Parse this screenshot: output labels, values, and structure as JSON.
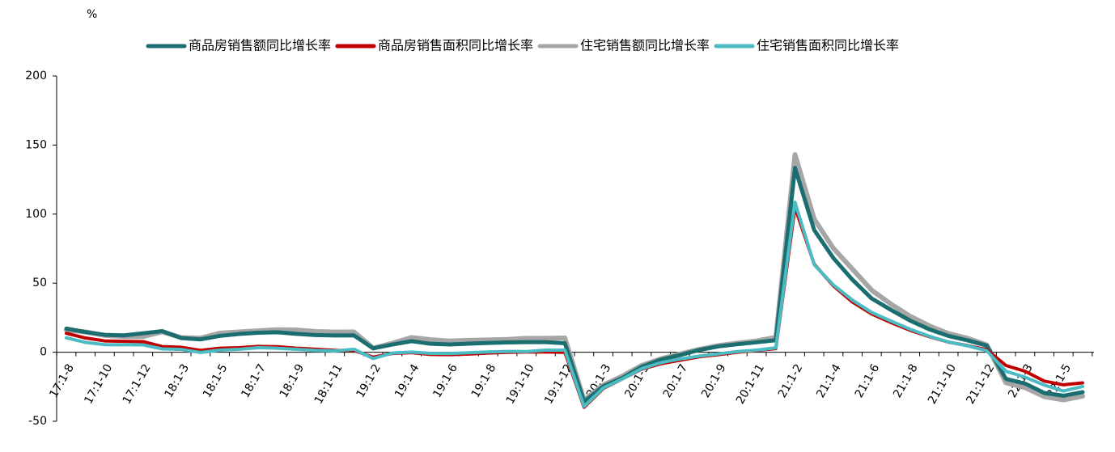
{
  "chart_data": {
    "type": "line",
    "unit": "%",
    "categories": [
      "17:1-8",
      null,
      "17:1-10",
      null,
      "17:1-12",
      null,
      "18:1-3",
      null,
      "18:1-5",
      null,
      "18:1-7",
      null,
      "18:1-9",
      null,
      "18:1-11",
      null,
      "19:1-2",
      null,
      "19:1-4",
      null,
      "19:1-6",
      null,
      "19:1-8",
      null,
      "19:1-10",
      null,
      "19:1-12",
      null,
      "20:1-3",
      null,
      "20:1-5",
      null,
      "20:1-7",
      null,
      "20:1-9",
      null,
      "20:1-11",
      null,
      "21:1-2",
      null,
      "21:1-4",
      null,
      "21:1-6",
      null,
      "21:1-8",
      null,
      "21:1-10",
      null,
      "21:1-12",
      null,
      "22:1-3",
      null,
      "22:1-5",
      null
    ],
    "series": [
      {
        "name": "商品房销售额同比增长率",
        "color": "#1b6e70",
        "values": [
          17.1,
          14.6,
          12.6,
          12.2,
          13.7,
          15.3,
          10.2,
          9.3,
          11.8,
          13.2,
          14.1,
          14.5,
          13.3,
          12.4,
          12.1,
          12.2,
          2.8,
          5.6,
          8.0,
          6.1,
          5.6,
          6.2,
          6.7,
          7.1,
          7.3,
          7.3,
          6.5,
          -35.9,
          -24.7,
          -18.6,
          -10.6,
          -5.4,
          -2.1,
          1.6,
          4.2,
          5.8,
          7.2,
          8.7,
          133.4,
          88.5,
          68.2,
          52.4,
          38.9,
          30.7,
          22.9,
          16.6,
          11.8,
          8.6,
          4.8,
          -19.3,
          -22.7,
          -29.5,
          -31.5,
          -28.9
        ]
      },
      {
        "name": "商品房销售面积同比增长率",
        "color": "#c00000",
        "values": [
          13.7,
          10.3,
          8.2,
          7.9,
          7.7,
          4.1,
          3.6,
          1.3,
          2.9,
          3.3,
          4.2,
          4.0,
          2.9,
          2.2,
          1.4,
          1.3,
          -3.6,
          -0.9,
          -0.3,
          -1.6,
          -1.8,
          -1.3,
          -0.6,
          -0.1,
          0.1,
          0.2,
          -0.1,
          -39.9,
          -26.3,
          -19.3,
          -12.3,
          -8.4,
          -5.8,
          -3.3,
          -1.8,
          0,
          1.3,
          2.6,
          104.9,
          63.8,
          48.1,
          36.3,
          27.7,
          21.5,
          15.9,
          11.3,
          7.3,
          4.8,
          1.9,
          -9.6,
          -13.8,
          -20.9,
          -23.6,
          -22.2
        ]
      },
      {
        "name": "住宅销售额同比增长率",
        "color": "#a6a6a6",
        "values": [
          16.1,
          14.7,
          12.2,
          11.3,
          11.3,
          14.8,
          10.6,
          10.2,
          13.8,
          14.7,
          15.5,
          16.3,
          16.1,
          15.0,
          14.6,
          14.7,
          3.0,
          6.5,
          10.7,
          9.1,
          8.1,
          8.6,
          8.9,
          9.3,
          10.1,
          10.1,
          10.3,
          -34.7,
          -23.8,
          -17.3,
          -9.6,
          -4.8,
          -1.3,
          2.1,
          4.8,
          6.6,
          8.2,
          10.8,
          143.1,
          96.4,
          75.3,
          60.1,
          44.9,
          34.9,
          26.1,
          19.1,
          13.6,
          10.1,
          5.3,
          -22.1,
          -25.6,
          -32.2,
          -34.5,
          -31.8
        ]
      },
      {
        "name": "住宅销售面积同比增长率",
        "color": "#4bbcc4",
        "values": [
          10.4,
          7.1,
          5.5,
          5.4,
          5.3,
          2.4,
          2.0,
          -0.2,
          1.5,
          2.1,
          3.3,
          2.9,
          2.1,
          1.3,
          0.9,
          2.2,
          -4.6,
          -0.6,
          0.1,
          -0.8,
          -0.9,
          -0.4,
          0.2,
          0.6,
          0.5,
          1.5,
          1.5,
          -39.2,
          -25.9,
          -19.3,
          -11.9,
          -7.6,
          -4.9,
          -2.8,
          -1.2,
          0.5,
          1.5,
          3.2,
          108.6,
          63.4,
          48.8,
          37.7,
          28.8,
          22.6,
          16.7,
          11.6,
          7.4,
          4.6,
          1.1,
          -13.8,
          -18.1,
          -23.8,
          -28.1,
          -24.8
        ]
      }
    ],
    "ylim": [
      -50,
      200
    ],
    "yticks": [
      -50,
      0,
      50,
      100,
      150,
      200
    ]
  }
}
